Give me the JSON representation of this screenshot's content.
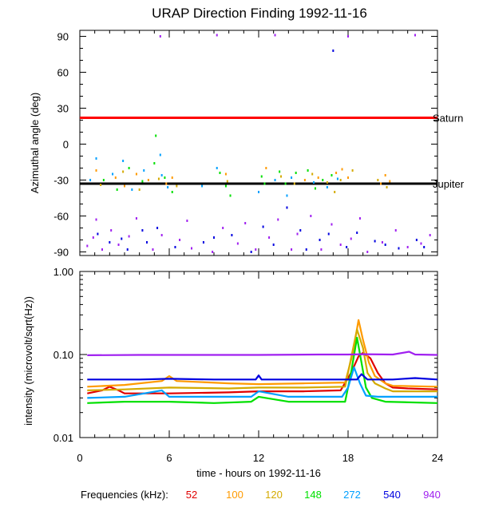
{
  "chart_data": [
    {
      "type": "scatter",
      "title": "URAP Direction Finding  1992-11-16",
      "ylabel": "Azimuthal angle (deg)",
      "xlim": [
        0,
        24
      ],
      "ylim": [
        -93,
        95
      ],
      "yticks": [
        90,
        60,
        30,
        0,
        -30,
        -60,
        -90
      ],
      "reference_lines": [
        {
          "label": "Saturn",
          "y": 22,
          "color": "#ff0000"
        },
        {
          "label": "Jupiter",
          "y": -33,
          "color": "#000000"
        }
      ],
      "scatter_series": [
        {
          "freq": "52",
          "color": "#e00000",
          "points": []
        },
        {
          "freq": "100",
          "color": "#ff9a00",
          "points": [
            [
              1.1,
              -22
            ],
            [
              2.4,
              -28
            ],
            [
              3.0,
              -35
            ],
            [
              3.8,
              -25
            ],
            [
              4.6,
              -30
            ],
            [
              5.8,
              -33
            ],
            [
              6.2,
              -28
            ],
            [
              9.8,
              -25
            ],
            [
              12.5,
              -20
            ],
            [
              15.1,
              -30
            ],
            [
              16.0,
              -28
            ],
            [
              17.2,
              -24
            ],
            [
              17.6,
              -21
            ],
            [
              18.0,
              -28
            ],
            [
              20.2,
              -33
            ],
            [
              20.5,
              -26
            ],
            [
              20.8,
              -31
            ]
          ]
        },
        {
          "freq": "120",
          "color": "#d4aa00",
          "points": [
            [
              1.4,
              -34
            ],
            [
              2.9,
              -23
            ],
            [
              4.0,
              -38
            ],
            [
              5.3,
              -29
            ],
            [
              6.5,
              -35
            ],
            [
              9.9,
              -31
            ],
            [
              13.5,
              -27
            ],
            [
              14.4,
              -33
            ],
            [
              15.6,
              -25
            ],
            [
              16.6,
              -32
            ],
            [
              17.1,
              -40
            ],
            [
              17.5,
              -30
            ],
            [
              18.3,
              -22
            ],
            [
              20.0,
              -30
            ],
            [
              20.6,
              -36
            ]
          ]
        },
        {
          "freq": "148",
          "color": "#00e000",
          "points": [
            [
              1.6,
              -30
            ],
            [
              2.5,
              -38
            ],
            [
              3.3,
              -20
            ],
            [
              4.2,
              -31
            ],
            [
              5.0,
              -16
            ],
            [
              5.1,
              7
            ],
            [
              5.7,
              -28
            ],
            [
              6.2,
              -40
            ],
            [
              9.4,
              -24
            ],
            [
              9.8,
              -35
            ],
            [
              10.1,
              -43
            ],
            [
              12.2,
              -27
            ],
            [
              12.4,
              -33
            ],
            [
              13.4,
              -23
            ],
            [
              13.8,
              -33
            ],
            [
              14.5,
              -24
            ],
            [
              15.3,
              -22
            ],
            [
              15.8,
              -37
            ],
            [
              16.3,
              -30
            ],
            [
              16.9,
              -26
            ]
          ]
        },
        {
          "freq": "272",
          "color": "#00a0ff",
          "points": [
            [
              0.7,
              -30
            ],
            [
              1.1,
              -12
            ],
            [
              2.2,
              -25
            ],
            [
              2.9,
              -14
            ],
            [
              3.5,
              -38
            ],
            [
              4.3,
              -22
            ],
            [
              5.4,
              -9
            ],
            [
              5.5,
              -26
            ],
            [
              5.9,
              -36
            ],
            [
              8.2,
              -35
            ],
            [
              9.2,
              -20
            ],
            [
              12.0,
              -40
            ],
            [
              13.1,
              -30
            ],
            [
              13.9,
              -43
            ],
            [
              14.2,
              -28
            ],
            [
              15.7,
              -32
            ],
            [
              16.6,
              -36
            ],
            [
              17.3,
              -29
            ]
          ]
        },
        {
          "freq": "540",
          "color": "#0000e0",
          "points": [
            [
              1.2,
              -75
            ],
            [
              2.0,
              -82
            ],
            [
              2.8,
              -79
            ],
            [
              3.2,
              -88
            ],
            [
              4.2,
              -72
            ],
            [
              4.5,
              -82
            ],
            [
              5.2,
              -70
            ],
            [
              6.4,
              -86
            ],
            [
              8.3,
              -82
            ],
            [
              9.0,
              -78
            ],
            [
              10.2,
              -76
            ],
            [
              11.5,
              -90
            ],
            [
              12.3,
              -69
            ],
            [
              13.0,
              -84
            ],
            [
              13.9,
              -53
            ],
            [
              14.8,
              -72
            ],
            [
              15.2,
              -88
            ],
            [
              16.1,
              -80
            ],
            [
              16.7,
              -75
            ],
            [
              17.9,
              -86
            ],
            [
              18.6,
              -74
            ],
            [
              19.8,
              -81
            ],
            [
              20.5,
              -84
            ],
            [
              21.4,
              -87
            ],
            [
              22.6,
              -80
            ],
            [
              23.1,
              -86
            ],
            [
              17.0,
              78
            ]
          ]
        },
        {
          "freq": "940",
          "color": "#a020f0",
          "points": [
            [
              0.5,
              -85
            ],
            [
              0.9,
              -78
            ],
            [
              1.1,
              -63
            ],
            [
              1.5,
              -88
            ],
            [
              2.1,
              -72
            ],
            [
              2.6,
              -84
            ],
            [
              3.3,
              -77
            ],
            [
              3.8,
              -62
            ],
            [
              4.9,
              -88
            ],
            [
              5.5,
              -76
            ],
            [
              5.4,
              90
            ],
            [
              6.7,
              -80
            ],
            [
              7.5,
              -87
            ],
            [
              7.2,
              -64
            ],
            [
              8.9,
              -90
            ],
            [
              9.6,
              -70
            ],
            [
              10.6,
              -83
            ],
            [
              11.1,
              -66
            ],
            [
              11.8,
              -88
            ],
            [
              12.7,
              -78
            ],
            [
              13.3,
              -63
            ],
            [
              14.2,
              -88
            ],
            [
              14.6,
              -75
            ],
            [
              15.5,
              -60
            ],
            [
              16.2,
              -88
            ],
            [
              16.9,
              -67
            ],
            [
              17.5,
              -84
            ],
            [
              18.2,
              -79
            ],
            [
              18.0,
              90
            ],
            [
              18.8,
              -62
            ],
            [
              19.3,
              -90
            ],
            [
              20.3,
              -82
            ],
            [
              21.2,
              -72
            ],
            [
              22.0,
              -86
            ],
            [
              22.9,
              -83
            ],
            [
              23.5,
              -76
            ],
            [
              9.2,
              91
            ],
            [
              13.1,
              91
            ],
            [
              22.5,
              91
            ]
          ]
        }
      ]
    },
    {
      "type": "line",
      "ylabel": "intensity (microvolt/sqrt(Hz))",
      "xlabel": "time - hours on 1992-11-16",
      "xlim": [
        0,
        24
      ],
      "xticks": [
        0,
        6,
        12,
        18,
        24
      ],
      "ylim": [
        0.01,
        1.0
      ],
      "yscale": "log",
      "yticks": [
        "1.00",
        "0.10",
        "0.01"
      ],
      "series": [
        {
          "freq": "52",
          "color": "#e00000",
          "x": [
            0.5,
            1.5,
            2.0,
            2.6,
            3.0,
            6,
            10,
            12,
            15,
            17.5,
            18.2,
            18.7,
            19.0,
            19.5,
            20.0,
            20.5,
            21,
            22,
            24
          ],
          "y": [
            0.034,
            0.037,
            0.041,
            0.037,
            0.034,
            0.034,
            0.035,
            0.036,
            0.036,
            0.037,
            0.06,
            0.095,
            0.105,
            0.09,
            0.06,
            0.045,
            0.04,
            0.039,
            0.038
          ]
        },
        {
          "freq": "100",
          "color": "#ff9a00",
          "x": [
            0.5,
            3,
            5.5,
            6,
            6.5,
            10,
            12,
            15,
            17.8,
            18.3,
            18.7,
            19.0,
            19.4,
            19.8,
            20.5,
            21,
            24
          ],
          "y": [
            0.041,
            0.043,
            0.048,
            0.055,
            0.048,
            0.045,
            0.044,
            0.045,
            0.046,
            0.1,
            0.26,
            0.15,
            0.08,
            0.055,
            0.045,
            0.042,
            0.041
          ]
        },
        {
          "freq": "120",
          "color": "#d4aa00",
          "x": [
            0.5,
            3,
            6,
            10,
            12,
            15,
            17.8,
            18.2,
            18.6,
            19.0,
            19.3,
            19.8,
            20.5,
            21,
            24
          ],
          "y": [
            0.037,
            0.038,
            0.04,
            0.039,
            0.04,
            0.04,
            0.041,
            0.09,
            0.2,
            0.12,
            0.06,
            0.045,
            0.039,
            0.036,
            0.036
          ]
        },
        {
          "freq": "148",
          "color": "#00e000",
          "x": [
            0.5,
            3,
            6,
            9,
            11.5,
            12,
            14,
            17.8,
            18.2,
            18.6,
            18.9,
            19.2,
            19.6,
            20.5,
            24
          ],
          "y": [
            0.026,
            0.027,
            0.027,
            0.026,
            0.027,
            0.031,
            0.027,
            0.027,
            0.06,
            0.16,
            0.08,
            0.04,
            0.03,
            0.027,
            0.026
          ]
        },
        {
          "freq": "272",
          "color": "#00a0ff",
          "x": [
            0.5,
            3,
            5.5,
            6,
            9,
            11.5,
            12,
            14,
            17.6,
            18.0,
            18.4,
            18.8,
            19.2,
            20,
            24
          ],
          "y": [
            0.03,
            0.031,
            0.037,
            0.031,
            0.031,
            0.031,
            0.036,
            0.031,
            0.031,
            0.04,
            0.07,
            0.045,
            0.032,
            0.031,
            0.031
          ]
        },
        {
          "freq": "540",
          "color": "#0000e0",
          "x": [
            0.5,
            4,
            6,
            9,
            11.8,
            12,
            12.2,
            17,
            18.6,
            18.9,
            19.3,
            21,
            22.5,
            24
          ],
          "y": [
            0.05,
            0.05,
            0.051,
            0.05,
            0.05,
            0.056,
            0.05,
            0.05,
            0.05,
            0.058,
            0.05,
            0.05,
            0.052,
            0.05
          ]
        },
        {
          "freq": "940",
          "color": "#a020f0",
          "x": [
            0.5,
            4,
            8,
            12,
            16,
            18,
            19,
            21,
            22.1,
            22.5,
            24
          ],
          "y": [
            0.098,
            0.099,
            0.099,
            0.099,
            0.1,
            0.1,
            0.101,
            0.1,
            0.108,
            0.1,
            0.099
          ]
        }
      ]
    }
  ],
  "legend": {
    "label": "Frequencies (kHz):",
    "items": [
      {
        "text": "52",
        "color": "#e00000"
      },
      {
        "text": "100",
        "color": "#ff9a00"
      },
      {
        "text": "120",
        "color": "#d4aa00"
      },
      {
        "text": "148",
        "color": "#00e000"
      },
      {
        "text": "272",
        "color": "#00a0ff"
      },
      {
        "text": "540",
        "color": "#0000e0"
      },
      {
        "text": "940",
        "color": "#a020f0"
      }
    ]
  }
}
